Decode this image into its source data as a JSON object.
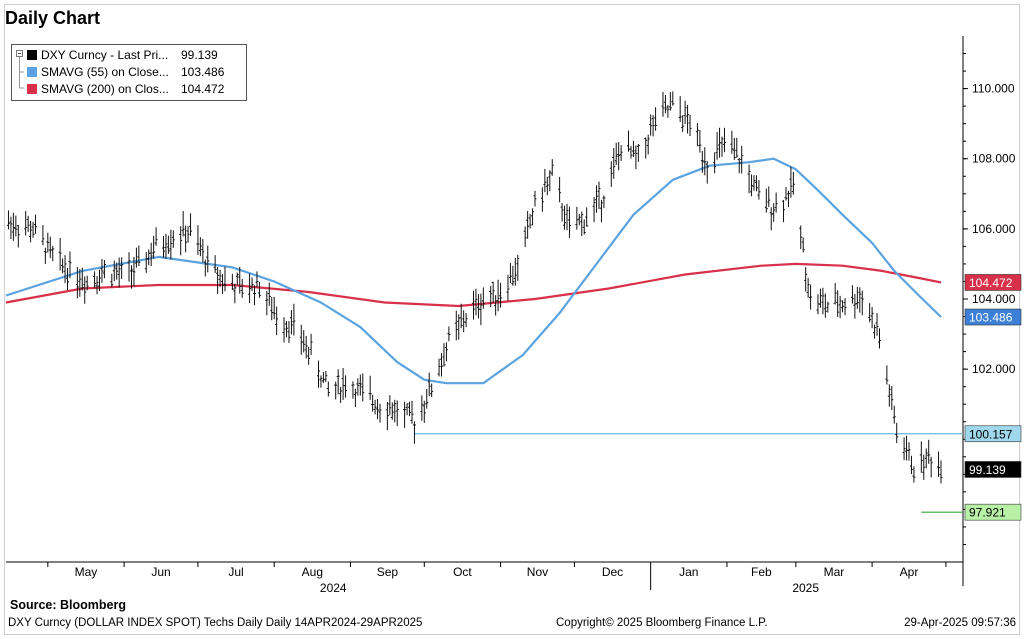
{
  "title": "Daily Chart",
  "source_label": "Source:  Bloomberg",
  "footer": {
    "description": "DXY Curncy (DOLLAR INDEX SPOT) Techs Daily  Daily 14APR2024-29APR2025",
    "copyright": "Copyright© 2025 Bloomberg Finance L.P.",
    "timestamp": "29-Apr-2025 09:57:36"
  },
  "legend": [
    {
      "name": "DXY Curncy - Last Pri...",
      "value": "99.139",
      "color": "#000000"
    },
    {
      "name": "SMAVG (55)  on Close...",
      "value": "103.486",
      "color": "#5ba3e0"
    },
    {
      "name": "SMAVG (200)  on Clos...",
      "value": "104.472",
      "color": "#d9304a"
    }
  ],
  "chart_data": {
    "type": "line",
    "title": "Daily Chart",
    "ylim": [
      96.5,
      111.5
    ],
    "yticks": [
      102,
      104,
      106,
      108,
      110
    ],
    "ytick_labels": [
      "102.000",
      "104.000",
      "106.000",
      "108.000",
      "110.000"
    ],
    "x_month_labels": [
      "May",
      "Jun",
      "Jul",
      "Aug",
      "Sep",
      "Oct",
      "Nov",
      "Dec",
      "Jan",
      "Feb",
      "Mar",
      "Apr"
    ],
    "x_year_labels": [
      "2024",
      "2025"
    ],
    "x_range": [
      "2024-04-14",
      "2025-04-29"
    ],
    "grid": false,
    "legend_position": "top-left",
    "series": [
      {
        "name": "DXY Curncy - Last Price",
        "color": "#000000",
        "x": [
          "2024-04-14",
          "2024-04-25",
          "2024-05-03",
          "2024-05-10",
          "2024-05-17",
          "2024-05-24",
          "2024-05-31",
          "2024-06-07",
          "2024-06-14",
          "2024-06-21",
          "2024-06-28",
          "2024-07-05",
          "2024-07-12",
          "2024-07-19",
          "2024-07-26",
          "2024-08-02",
          "2024-08-09",
          "2024-08-16",
          "2024-08-23",
          "2024-08-30",
          "2024-09-06",
          "2024-09-13",
          "2024-09-20",
          "2024-09-27",
          "2024-10-04",
          "2024-10-11",
          "2024-10-18",
          "2024-10-25",
          "2024-11-01",
          "2024-11-08",
          "2024-11-15",
          "2024-11-22",
          "2024-11-29",
          "2024-12-06",
          "2024-12-13",
          "2024-12-20",
          "2024-12-27",
          "2025-01-03",
          "2025-01-10",
          "2025-01-17",
          "2025-01-24",
          "2025-01-31",
          "2025-02-07",
          "2025-02-14",
          "2025-02-21",
          "2025-02-28",
          "2025-03-07",
          "2025-03-14",
          "2025-03-21",
          "2025-03-28",
          "2025-04-04",
          "2025-04-11",
          "2025-04-18",
          "2025-04-25",
          "2025-04-29"
        ],
        "values": [
          106.2,
          106.0,
          105.2,
          104.8,
          104.5,
          104.8,
          104.7,
          104.9,
          105.5,
          105.8,
          105.9,
          105.0,
          104.5,
          104.3,
          104.4,
          103.5,
          103.2,
          102.4,
          101.4,
          101.6,
          101.3,
          101.0,
          100.8,
          100.5,
          101.5,
          102.8,
          103.5,
          104.0,
          104.2,
          104.9,
          106.7,
          107.5,
          106.0,
          106.3,
          107.0,
          108.3,
          108.0,
          109.1,
          109.5,
          109.0,
          107.9,
          108.4,
          107.9,
          106.9,
          106.6,
          107.2,
          104.0,
          103.8,
          103.9,
          104.1,
          102.9,
          100.2,
          99.2,
          99.5,
          99.139
        ]
      },
      {
        "name": "SMAVG (55) on Close",
        "color": "#5ba3e0",
        "x": [
          "2024-04-14",
          "2024-05-15",
          "2024-06-15",
          "2024-07-15",
          "2024-08-01",
          "2024-08-20",
          "2024-09-05",
          "2024-09-20",
          "2024-10-01",
          "2024-10-10",
          "2024-10-25",
          "2024-11-10",
          "2024-11-25",
          "2024-12-10",
          "2024-12-25",
          "2025-01-10",
          "2025-01-25",
          "2025-02-10",
          "2025-02-20",
          "2025-03-01",
          "2025-03-10",
          "2025-03-20",
          "2025-04-01",
          "2025-04-10",
          "2025-04-20",
          "2025-04-29"
        ],
        "values": [
          104.1,
          104.8,
          105.2,
          104.9,
          104.5,
          103.9,
          103.2,
          102.2,
          101.7,
          101.6,
          101.6,
          102.4,
          103.6,
          105.0,
          106.4,
          107.4,
          107.8,
          107.9,
          108.0,
          107.7,
          107.1,
          106.4,
          105.6,
          104.8,
          104.1,
          103.486
        ]
      },
      {
        "name": "SMAVG (200) on Close",
        "color": "#d9304a",
        "x": [
          "2024-04-14",
          "2024-05-15",
          "2024-06-15",
          "2024-07-15",
          "2024-08-15",
          "2024-09-15",
          "2024-10-15",
          "2024-11-15",
          "2024-12-15",
          "2025-01-15",
          "2025-02-15",
          "2025-03-01",
          "2025-03-20",
          "2025-04-05",
          "2025-04-20",
          "2025-04-29"
        ],
        "values": [
          103.9,
          104.3,
          104.4,
          104.4,
          104.2,
          103.9,
          103.8,
          104.0,
          104.3,
          104.7,
          104.95,
          105.0,
          104.95,
          104.8,
          104.6,
          104.472
        ]
      }
    ],
    "annotations": {
      "support_line": {
        "value": 100.157,
        "label": "100.157",
        "from": "2024-09-27",
        "to": "2025-04-29",
        "color": "#6ab8dc"
      },
      "low_line": {
        "value": 97.921,
        "label": "97.921",
        "from": "2025-04-21",
        "to": "2025-04-29",
        "color": "#33aa33"
      },
      "value_tags": [
        {
          "value": 104.472,
          "label": "104.472",
          "bg": "#d9304a",
          "fg": "#ffffff"
        },
        {
          "value": 103.486,
          "label": "103.486",
          "bg": "#3b7fd6",
          "fg": "#ffffff"
        },
        {
          "value": 100.157,
          "label": "100.157",
          "bg": "#9fd8ec",
          "fg": "#000000"
        },
        {
          "value": 99.139,
          "label": "99.139",
          "bg": "#000000",
          "fg": "#ffffff"
        },
        {
          "value": 97.921,
          "label": "97.921",
          "bg": "#b9f0a8",
          "fg": "#000000"
        }
      ]
    }
  }
}
